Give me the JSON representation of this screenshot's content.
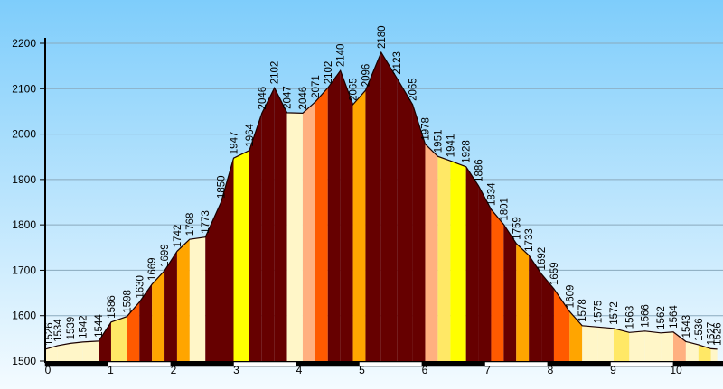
{
  "chart_data": {
    "type": "area",
    "title": "",
    "xlabel": "",
    "ylabel": "",
    "xlim": [
      0,
      10.7
    ],
    "ylim": [
      1500,
      2200
    ],
    "x_ticks": [
      "0",
      "1",
      "2",
      "3",
      "4",
      "5",
      "6",
      "7",
      "8",
      "9",
      "10"
    ],
    "y_ticks": [
      "1500",
      "1600",
      "1700",
      "1800",
      "1900",
      "2000",
      "2100",
      "2200"
    ],
    "grid": true,
    "background": {
      "top": "#7ecdfb",
      "bottom": "#f4fbff"
    },
    "gradient_colors": {
      "flat": "#fff6c8",
      "gentle": "#ffe866",
      "moderate": "#ffff00",
      "steep": "#ffa500",
      "steeper": "#ff5a00",
      "very_steep": "#660000",
      "descent_gentle": "#ffb080"
    },
    "profile_outline_color": "#1a0000",
    "elevation_labels": [
      "1526",
      "1534",
      "1539",
      "1542",
      "1544",
      "1586",
      "1598",
      "1630",
      "1669",
      "1699",
      "1742",
      "1768",
      "1773",
      "1850",
      "1947",
      "1964",
      "2046",
      "2102",
      "2047",
      "2046",
      "2071",
      "2102",
      "2140",
      "2065",
      "2096",
      "2180",
      "2123",
      "2065",
      "1978",
      "1951",
      "1941",
      "1928",
      "1886",
      "1834",
      "1801",
      "1759",
      "1733",
      "1692",
      "1659",
      "1609",
      "1578",
      "1575",
      "1572",
      "1563",
      "1566",
      "1562",
      "1564",
      "1543",
      "1536",
      "1527",
      "1526"
    ],
    "segments": [
      {
        "x0": 0.0,
        "x1": 0.2,
        "elev": [
          1526,
          1534
        ],
        "color": "#fff6c8"
      },
      {
        "x0": 0.2,
        "x1": 0.4,
        "elev": [
          1534,
          1539
        ],
        "color": "#fff6c8"
      },
      {
        "x0": 0.4,
        "x1": 0.6,
        "elev": [
          1539,
          1542
        ],
        "color": "#fff6c8"
      },
      {
        "x0": 0.6,
        "x1": 0.85,
        "elev": [
          1542,
          1544
        ],
        "color": "#fff6c8"
      },
      {
        "x0": 0.85,
        "x1": 1.05,
        "elev": [
          1544,
          1586
        ],
        "color": "#660000"
      },
      {
        "x0": 1.05,
        "x1": 1.3,
        "elev": [
          1586,
          1598
        ],
        "color": "#ffe866"
      },
      {
        "x0": 1.3,
        "x1": 1.5,
        "elev": [
          1598,
          1630
        ],
        "color": "#ff5a00"
      },
      {
        "x0": 1.5,
        "x1": 1.7,
        "elev": [
          1630,
          1669
        ],
        "color": "#660000"
      },
      {
        "x0": 1.7,
        "x1": 1.9,
        "elev": [
          1669,
          1699
        ],
        "color": "#ffa500"
      },
      {
        "x0": 1.9,
        "x1": 2.1,
        "elev": [
          1699,
          1742
        ],
        "color": "#660000"
      },
      {
        "x0": 2.1,
        "x1": 2.3,
        "elev": [
          1742,
          1768
        ],
        "color": "#ffa500"
      },
      {
        "x0": 2.3,
        "x1": 2.55,
        "elev": [
          1768,
          1773
        ],
        "color": "#fff6c8"
      },
      {
        "x0": 2.55,
        "x1": 2.8,
        "elev": [
          1773,
          1850
        ],
        "color": "#660000"
      },
      {
        "x0": 2.8,
        "x1": 3.0,
        "elev": [
          1850,
          1947
        ],
        "color": "#660000"
      },
      {
        "x0": 3.0,
        "x1": 3.25,
        "elev": [
          1947,
          1964
        ],
        "color": "#ffff00"
      },
      {
        "x0": 3.25,
        "x1": 3.45,
        "elev": [
          1964,
          2046
        ],
        "color": "#660000"
      },
      {
        "x0": 3.45,
        "x1": 3.65,
        "elev": [
          2046,
          2102
        ],
        "color": "#660000"
      },
      {
        "x0": 3.65,
        "x1": 3.85,
        "elev": [
          2102,
          2047
        ],
        "color": "#660000"
      },
      {
        "x0": 3.85,
        "x1": 4.1,
        "elev": [
          2047,
          2046
        ],
        "color": "#fff6c8"
      },
      {
        "x0": 4.1,
        "x1": 4.3,
        "elev": [
          2046,
          2071
        ],
        "color": "#ffb080"
      },
      {
        "x0": 4.3,
        "x1": 4.5,
        "elev": [
          2071,
          2102
        ],
        "color": "#ff5a00"
      },
      {
        "x0": 4.5,
        "x1": 4.7,
        "elev": [
          2102,
          2140
        ],
        "color": "#660000"
      },
      {
        "x0": 4.7,
        "x1": 4.9,
        "elev": [
          2140,
          2065
        ],
        "color": "#660000"
      },
      {
        "x0": 4.9,
        "x1": 5.1,
        "elev": [
          2065,
          2096
        ],
        "color": "#ffa500"
      },
      {
        "x0": 5.1,
        "x1": 5.35,
        "elev": [
          2096,
          2180
        ],
        "color": "#660000"
      },
      {
        "x0": 5.35,
        "x1": 5.6,
        "elev": [
          2180,
          2123
        ],
        "color": "#660000"
      },
      {
        "x0": 5.6,
        "x1": 5.85,
        "elev": [
          2123,
          2065
        ],
        "color": "#660000"
      },
      {
        "x0": 5.85,
        "x1": 6.05,
        "elev": [
          2065,
          1978
        ],
        "color": "#660000"
      },
      {
        "x0": 6.05,
        "x1": 6.25,
        "elev": [
          1978,
          1951
        ],
        "color": "#ffb080"
      },
      {
        "x0": 6.25,
        "x1": 6.45,
        "elev": [
          1951,
          1941
        ],
        "color": "#ffe866"
      },
      {
        "x0": 6.45,
        "x1": 6.7,
        "elev": [
          1941,
          1928
        ],
        "color": "#ffff00"
      },
      {
        "x0": 6.7,
        "x1": 6.9,
        "elev": [
          1928,
          1886
        ],
        "color": "#660000"
      },
      {
        "x0": 6.9,
        "x1": 7.1,
        "elev": [
          1886,
          1834
        ],
        "color": "#660000"
      },
      {
        "x0": 7.1,
        "x1": 7.3,
        "elev": [
          1834,
          1801
        ],
        "color": "#ff5a00"
      },
      {
        "x0": 7.3,
        "x1": 7.5,
        "elev": [
          1801,
          1759
        ],
        "color": "#660000"
      },
      {
        "x0": 7.5,
        "x1": 7.7,
        "elev": [
          1759,
          1733
        ],
        "color": "#ffa500"
      },
      {
        "x0": 7.7,
        "x1": 7.9,
        "elev": [
          1733,
          1692
        ],
        "color": "#660000"
      },
      {
        "x0": 7.9,
        "x1": 8.1,
        "elev": [
          1692,
          1659
        ],
        "color": "#660000"
      },
      {
        "x0": 8.1,
        "x1": 8.35,
        "elev": [
          1659,
          1609
        ],
        "color": "#ff5a00"
      },
      {
        "x0": 8.35,
        "x1": 8.55,
        "elev": [
          1609,
          1578
        ],
        "color": "#ffa500"
      },
      {
        "x0": 8.55,
        "x1": 8.8,
        "elev": [
          1578,
          1575
        ],
        "color": "#fff6c8"
      },
      {
        "x0": 8.8,
        "x1": 9.05,
        "elev": [
          1575,
          1572
        ],
        "color": "#fff6c8"
      },
      {
        "x0": 9.05,
        "x1": 9.3,
        "elev": [
          1572,
          1563
        ],
        "color": "#ffe866"
      },
      {
        "x0": 9.3,
        "x1": 9.55,
        "elev": [
          1563,
          1566
        ],
        "color": "#fff6c8"
      },
      {
        "x0": 9.55,
        "x1": 9.8,
        "elev": [
          1566,
          1562
        ],
        "color": "#fff6c8"
      },
      {
        "x0": 9.8,
        "x1": 10.0,
        "elev": [
          1562,
          1564
        ],
        "color": "#fff6c8"
      },
      {
        "x0": 10.0,
        "x1": 10.2,
        "elev": [
          1564,
          1543
        ],
        "color": "#ffb080"
      },
      {
        "x0": 10.2,
        "x1": 10.4,
        "elev": [
          1543,
          1536
        ],
        "color": "#fff6c8"
      },
      {
        "x0": 10.4,
        "x1": 10.6,
        "elev": [
          1536,
          1527
        ],
        "color": "#ffe866"
      },
      {
        "x0": 10.6,
        "x1": 10.7,
        "elev": [
          1527,
          1526
        ],
        "color": "#fff6c8"
      }
    ],
    "km_bands": [
      "#000000",
      "#ffffff"
    ]
  }
}
